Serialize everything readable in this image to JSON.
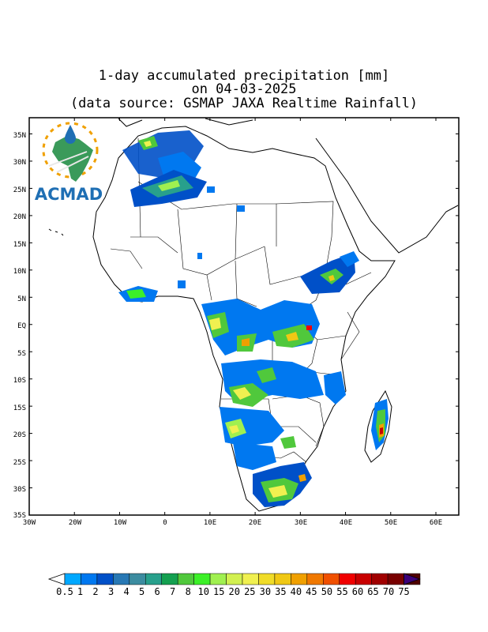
{
  "title": {
    "line1": "1-day accumulated precipitation [mm]",
    "line2": "on 04-03-2025",
    "line3": "(data source: GSMAP JAXA Realtime Rainfall)"
  },
  "logo": {
    "text": "ACMAD"
  },
  "axes": {
    "lat_labels": [
      "35N",
      "30N",
      "25N",
      "20N",
      "15N",
      "10N",
      "5N",
      "EQ",
      "5S",
      "10S",
      "15S",
      "20S",
      "25S",
      "30S",
      "35S"
    ],
    "lon_labels": [
      "30W",
      "20W",
      "10W",
      "0",
      "10E",
      "20E",
      "30E",
      "40E",
      "50E",
      "60E"
    ]
  },
  "colorbar": {
    "labels": [
      "0.5",
      "1",
      "2",
      "3",
      "4",
      "5",
      "6",
      "7",
      "8",
      "10",
      "15",
      "20",
      "25",
      "30",
      "35",
      "40",
      "45",
      "50",
      "55",
      "60",
      "65",
      "70",
      "75"
    ],
    "colors": [
      "#00a8ff",
      "#0078f0",
      "#0050c8",
      "#2878b4",
      "#3c8ca0",
      "#28a08c",
      "#14a050",
      "#50c83c",
      "#3cf028",
      "#a0f050",
      "#d2f050",
      "#f0f050",
      "#f0dc28",
      "#f0c814",
      "#f0a000",
      "#f07800",
      "#f05000",
      "#f00000",
      "#c80000",
      "#a00000",
      "#780000",
      "#500000",
      "#3c0078"
    ]
  }
}
